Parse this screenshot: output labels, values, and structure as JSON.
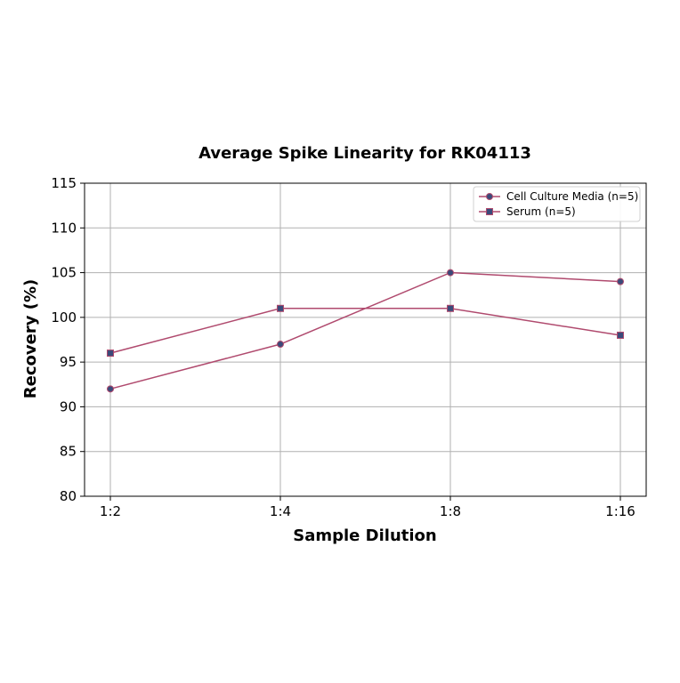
{
  "chart_data": {
    "type": "line",
    "title": "Average Spike Linearity for RK04113",
    "xlabel": "Sample Dilution",
    "ylabel": "Recovery (%)",
    "categories": [
      "1:2",
      "1:4",
      "1:8",
      "1:16"
    ],
    "ylim": [
      80,
      115
    ],
    "yticks": [
      80,
      85,
      90,
      95,
      100,
      105,
      110,
      115
    ],
    "grid": true,
    "legend_position": "top-right",
    "series": [
      {
        "name": "Cell Culture Media (n=5)",
        "values": [
          92,
          97,
          105,
          104
        ],
        "marker": "circle",
        "line_color": "#b04a6e",
        "marker_color": "#3b4a7a"
      },
      {
        "name": "Serum (n=5)",
        "values": [
          96,
          101,
          101,
          98
        ],
        "marker": "square",
        "line_color": "#b04a6e",
        "marker_color": "#3b4a7a"
      }
    ]
  }
}
